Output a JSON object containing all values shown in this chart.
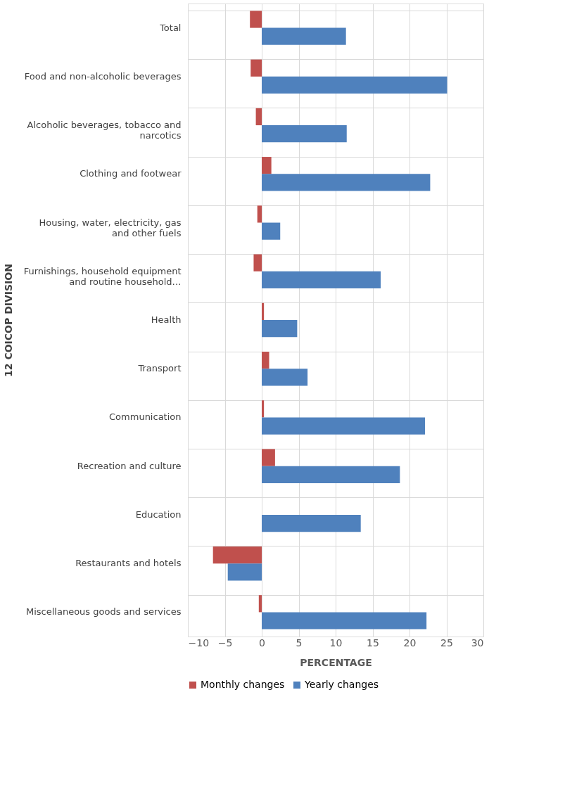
{
  "chart_data": {
    "type": "bar",
    "orientation": "horizontal",
    "xlabel": "PERCENTAGE",
    "ylabel": "12 COICOP DIVISION",
    "categories": [
      "Total",
      "Food and non-alcoholic beverages",
      "Alcoholic beverages, tobacco and narcotics",
      "Clothing and footwear",
      "Housing, water, electricity, gas and other fuels",
      "Furnishings, household equipment and routine household…",
      "Health",
      "Transport",
      "Communication",
      "Recreation and culture",
      "Education",
      "Restaurants and hotels",
      "Miscellaneous goods and services"
    ],
    "series": [
      {
        "name": "Monthly changes",
        "color": "#c0504d",
        "values": [
          -1.6,
          -1.5,
          -0.8,
          1.3,
          -0.6,
          -1.1,
          0.3,
          1.0,
          0.3,
          1.8,
          0,
          -6.6,
          -0.4
        ]
      },
      {
        "name": "Yearly changes",
        "color": "#4f81bd",
        "values": [
          11.4,
          25.1,
          11.5,
          22.8,
          2.5,
          16.1,
          4.8,
          6.2,
          22.1,
          18.7,
          13.4,
          -4.6,
          22.3
        ]
      }
    ],
    "xlim": [
      -10,
      30
    ],
    "xticks": [
      -10,
      -5,
      0,
      5,
      10,
      15,
      20,
      25,
      30
    ],
    "grid": true,
    "legend": "bottom"
  }
}
